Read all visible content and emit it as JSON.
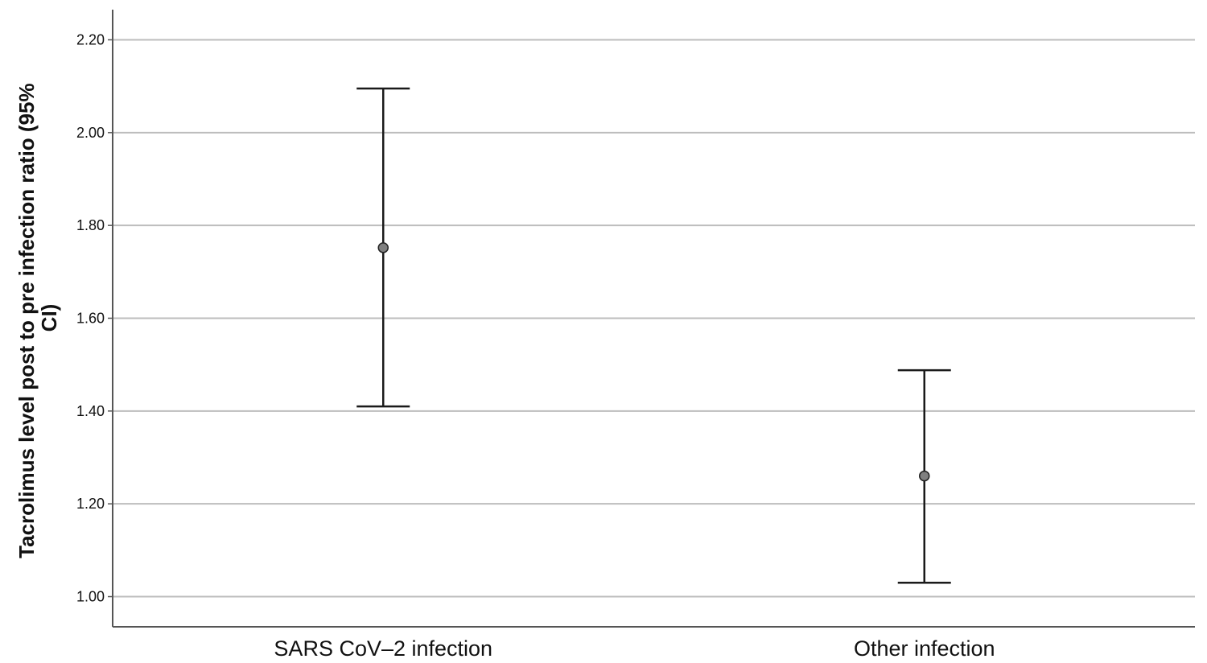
{
  "chart_data": {
    "type": "errorbar",
    "title": "",
    "xlabel": "",
    "ylabel": {
      "line1": "Tacrolimus level post to pre infection ratio (95%",
      "line2": "CI)"
    },
    "categories": [
      "SARS CoV–2 infection",
      "Other infection"
    ],
    "series": [
      {
        "mean": [
          1.752,
          1.26
        ],
        "ci_lower": [
          1.41,
          1.03
        ],
        "ci_upper": [
          2.095,
          1.488
        ]
      }
    ],
    "ylim": [
      0.935,
      2.265
    ],
    "yticks": [
      1.0,
      1.2,
      1.4,
      1.6,
      1.8,
      2.0,
      2.2
    ],
    "ytick_labels": [
      "1.00",
      "1.20",
      "1.40",
      "1.60",
      "1.80",
      "2.00",
      "2.20"
    ],
    "grid": true,
    "colors": {
      "grid": "#bdbdbd",
      "axis": "#555555",
      "errorbar": "#1a1a1a",
      "marker_fill": "#808080",
      "marker_stroke": "#222222"
    }
  }
}
